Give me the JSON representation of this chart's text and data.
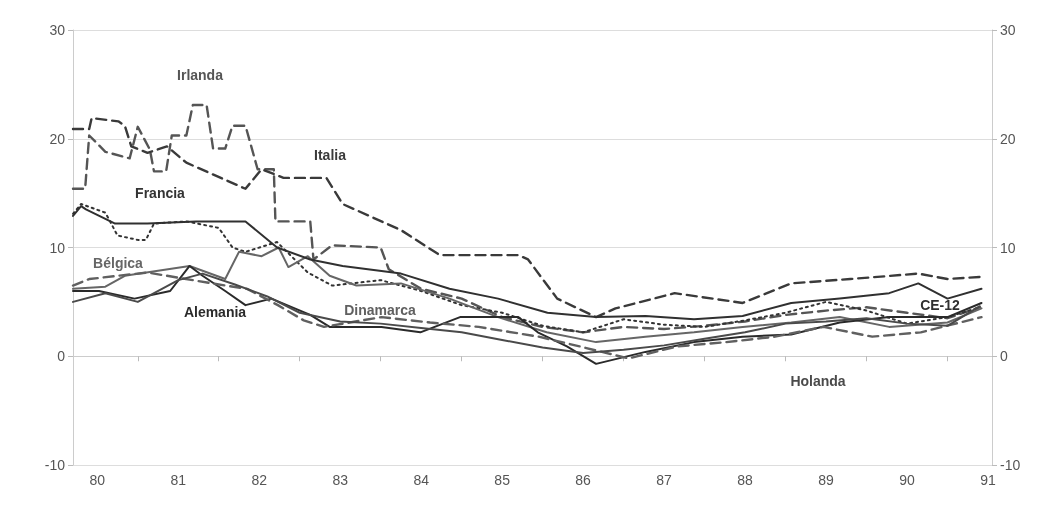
{
  "chart_data": {
    "type": "line",
    "xlim": [
      79.7,
      91.05
    ],
    "xticks": [
      80,
      81,
      82,
      83,
      84,
      85,
      86,
      87,
      88,
      89,
      90,
      91,
      {
        "value": 80.5,
        "label": null
      },
      {
        "value": 81.5,
        "label": null
      },
      {
        "value": 82.5,
        "label": null
      },
      {
        "value": 83.5,
        "label": null
      },
      {
        "value": 84.5,
        "label": null
      },
      {
        "value": 85.5,
        "label": null
      },
      {
        "value": 86.5,
        "label": null
      },
      {
        "value": 87.5,
        "label": null
      },
      {
        "value": 88.5,
        "label": null
      },
      {
        "value": 89.5,
        "label": null
      },
      {
        "value": 90.5,
        "label": null
      }
    ],
    "ylim": [
      -10,
      30
    ],
    "yticks": [
      -10,
      0,
      10,
      20,
      30
    ],
    "y2lim": [
      -10,
      30
    ],
    "y2ticks": [
      -10,
      0,
      10,
      20,
      30
    ],
    "grid": "y",
    "legend": false,
    "marker": "none",
    "series": [
      {
        "name": "Irlanda",
        "color": "#555555",
        "line_style": "dashed",
        "x": [
          79.7,
          79.85,
          79.9,
          80.1,
          80.4,
          80.5,
          80.65,
          80.7,
          80.85,
          80.92,
          81.1,
          81.18,
          81.35,
          81.43,
          81.58,
          81.67,
          81.83,
          81.98,
          82.18,
          82.2,
          82.63,
          82.67,
          82.9,
          83.5,
          83.6,
          84.0,
          84.5,
          85.0,
          85.5,
          86.0,
          86.5,
          87.0,
          87.5,
          88.0,
          88.5,
          89.0,
          89.5,
          90.0,
          90.5,
          90.9
        ],
        "values": [
          15.4,
          15.4,
          20.3,
          18.8,
          18.2,
          21.1,
          19,
          17,
          17,
          20.3,
          20.3,
          23.1,
          23.1,
          19.1,
          19.1,
          21.2,
          21.2,
          17.2,
          17.2,
          12.4,
          12.4,
          8.9,
          10.2,
          10,
          8,
          6.2,
          5.3,
          3.6,
          2.7,
          2.2,
          2.7,
          2.5,
          2.8,
          3.2,
          3.8,
          4.2,
          4.5,
          4.0,
          3.5,
          4.5
        ]
      },
      {
        "name": "Italia",
        "color": "#3a3a3a",
        "line_style": "dashed",
        "x": [
          79.7,
          79.9,
          79.93,
          80.26,
          80.34,
          80.42,
          80.62,
          80.86,
          81.1,
          81.83,
          82.03,
          82.3,
          82.83,
          83.03,
          83.75,
          84.23,
          85.2,
          85.32,
          85.68,
          86.16,
          86.4,
          87.13,
          87.97,
          88.57,
          89.3,
          90.14,
          90.5,
          90.92
        ],
        "values": [
          20.9,
          20.9,
          21.9,
          21.6,
          21.2,
          19.3,
          18.7,
          19.3,
          17.8,
          15.4,
          17.2,
          16.4,
          16.4,
          14,
          11.6,
          9.3,
          9.3,
          8.9,
          5.3,
          3.6,
          4.4,
          5.8,
          4.9,
          6.7,
          7.1,
          7.6,
          7.1,
          7.3
        ]
      },
      {
        "name": "Francia",
        "color": "#333333",
        "line_style": "dotted",
        "x": [
          79.7,
          79.8,
          80.1,
          80.25,
          80.5,
          80.6,
          80.7,
          81.1,
          81.5,
          81.67,
          81.83,
          82.22,
          82.6,
          82.9,
          83.5,
          84.0,
          84.5,
          85.0,
          85.5,
          86.0,
          86.5,
          87.0,
          87.5,
          88.0,
          88.5,
          89.0,
          89.5,
          90.0,
          90.5,
          90.9
        ],
        "values": [
          13.1,
          14,
          13.2,
          11.1,
          10.7,
          10.7,
          12.2,
          12.4,
          11.8,
          10,
          9.6,
          10.5,
          7.7,
          6.5,
          7.0,
          6,
          4.7,
          4,
          2.8,
          2.2,
          3.4,
          2.9,
          2.7,
          3.3,
          4.0,
          5.0,
          4.2,
          3.0,
          3.6,
          4.5
        ]
      },
      {
        "name": "Bélgica",
        "color": "#666666",
        "line_style": "solid",
        "x": [
          79.7,
          80.1,
          80.34,
          81.14,
          81.58,
          81.75,
          82.03,
          82.24,
          82.36,
          82.6,
          82.87,
          83.2,
          83.75,
          84.35,
          84.95,
          85.55,
          86.16,
          86.77,
          87.37,
          87.97,
          88.57,
          89.17,
          89.78,
          90.5,
          90.92
        ],
        "values": [
          6.2,
          6.4,
          7.4,
          8.3,
          7.1,
          9.6,
          9.2,
          10,
          8.2,
          9.2,
          7.4,
          6.5,
          6.7,
          5.3,
          3.6,
          2.2,
          1.3,
          1.8,
          2.2,
          2.7,
          3.1,
          3.6,
          2.7,
          3.1,
          4.4
        ]
      },
      {
        "name": "Alemania",
        "color": "#2a2a2a",
        "line_style": "solid",
        "x": [
          79.7,
          80.02,
          80.46,
          80.9,
          81.14,
          81.3,
          81.58,
          81.83,
          82.15,
          82.63,
          82.87,
          83.51,
          83.99,
          84.48,
          85.2,
          85.44,
          85.8,
          86.16,
          86.77,
          87.37,
          87.97,
          88.57,
          89.17,
          89.78,
          90.5,
          90.92
        ],
        "values": [
          6,
          6,
          5.3,
          6,
          8.3,
          7.4,
          6,
          4.7,
          5.3,
          3.8,
          2.7,
          2.7,
          2.2,
          3.6,
          3.6,
          2.2,
          0.9,
          -0.7,
          0.4,
          1.3,
          1.8,
          2.0,
          3.1,
          3.6,
          3.6,
          4.9
        ]
      },
      {
        "name": "Dinamarca",
        "color": "#606060",
        "line_style": "dashed",
        "x": [
          79.7,
          79.9,
          80.62,
          81.58,
          81.85,
          82.23,
          82.55,
          82.8,
          83.51,
          84.11,
          84.71,
          85.45,
          85.96,
          86.56,
          87.16,
          87.77,
          88.37,
          88.97,
          89.57,
          90.17,
          90.92
        ],
        "values": [
          6.5,
          7.1,
          7.7,
          6.5,
          6.2,
          4.7,
          3.3,
          2.7,
          3.6,
          3.1,
          2.7,
          1.8,
          0.9,
          -0.2,
          0.9,
          1.3,
          1.8,
          2.7,
          1.8,
          2.2,
          3.6
        ]
      },
      {
        "name": "Holanda",
        "color": "#4a4a4a",
        "line_style": "solid",
        "x": [
          79.7,
          80.1,
          80.5,
          81.0,
          81.3,
          81.7,
          82.1,
          82.5,
          83.0,
          83.5,
          84.0,
          84.5,
          85.0,
          85.5,
          86.0,
          86.5,
          87.0,
          87.5,
          88.0,
          88.5,
          89.0,
          89.5,
          90.0,
          90.5,
          90.9
        ],
        "values": [
          5.0,
          5.8,
          5.0,
          7.0,
          7.6,
          6.6,
          5.5,
          4,
          3.2,
          3.0,
          2.6,
          2.2,
          1.5,
          0.8,
          0.3,
          0.6,
          1.0,
          1.6,
          2.2,
          3.0,
          3.2,
          3.5,
          3.0,
          2.8,
          4.6
        ]
      },
      {
        "name": "CE-12",
        "color": "#303030",
        "line_style": "solid",
        "x": [
          79.7,
          79.8,
          79.86,
          80.22,
          80.62,
          81.22,
          81.83,
          82.22,
          82.63,
          83.03,
          83.75,
          84.35,
          84.95,
          85.56,
          86.16,
          86.77,
          87.37,
          87.97,
          88.57,
          89.17,
          89.78,
          90.14,
          90.5,
          90.92
        ],
        "values": [
          12.9,
          13.8,
          13.5,
          12.2,
          12.2,
          12.4,
          12.4,
          10,
          8.9,
          8.3,
          7.6,
          6.2,
          5.3,
          4,
          3.6,
          3.7,
          3.4,
          3.7,
          4.9,
          5.3,
          5.8,
          6.7,
          5.3,
          6.2
        ]
      }
    ]
  }
}
